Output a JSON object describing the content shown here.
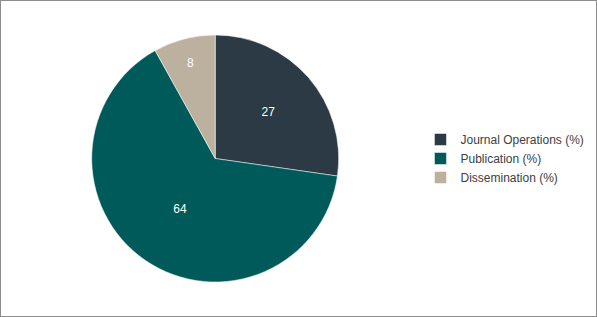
{
  "chart_data": {
    "type": "pie",
    "categories": [
      "Journal Operations (%)",
      "Publication (%)",
      "Dissemination (%)"
    ],
    "values": [
      27,
      64,
      8
    ],
    "colors": [
      "#2b3a44",
      "#005a5a",
      "#bcb09f"
    ],
    "data_labels": true,
    "legend": "right"
  }
}
